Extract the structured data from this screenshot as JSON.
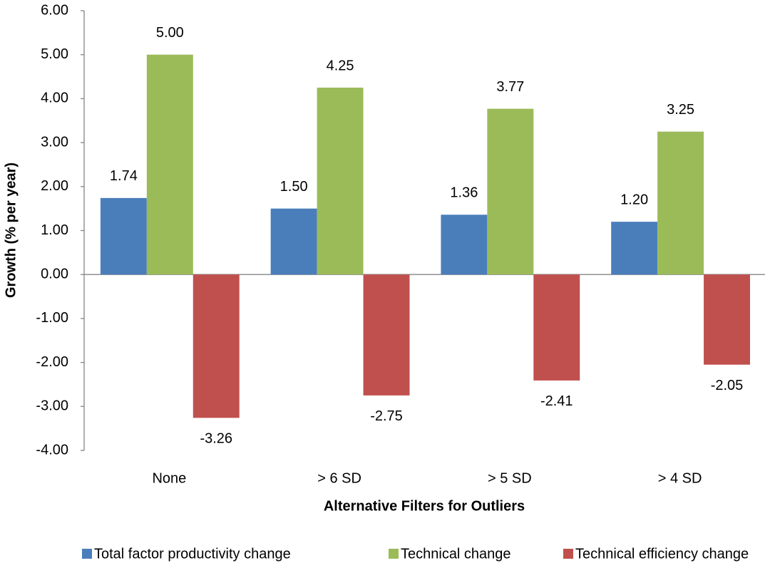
{
  "chart_data": {
    "type": "bar",
    "x_label": "Alternative Filters for Outliers",
    "y_label": "Growth (% per year)",
    "categories": [
      "None",
      "> 6 SD",
      "> 5 SD",
      "> 4 SD"
    ],
    "series": [
      {
        "name": "Total factor productivity change",
        "color": "#4a7ebb",
        "values": [
          1.74,
          1.5,
          1.36,
          1.2
        ],
        "value_labels": [
          "1.74",
          "1.50",
          "1.36",
          "1.20"
        ]
      },
      {
        "name": "Technical change",
        "color": "#9bbb59",
        "values": [
          5,
          4.25,
          3.77,
          3.25
        ],
        "value_labels": [
          "5.00",
          "4.25",
          "3.77",
          "3.25"
        ]
      },
      {
        "name": "Technical efficiency change",
        "color": "#c0504d",
        "values": [
          -3.26,
          -2.75,
          -2.41,
          -2.05
        ],
        "value_labels": [
          "-3.26",
          "-2.75",
          "-2.41",
          "-2.05"
        ]
      }
    ],
    "ylim": [
      -4,
      6
    ],
    "yticks": [
      {
        "value": -4,
        "label": "-4.00"
      },
      {
        "value": -3,
        "label": "-3.00"
      },
      {
        "value": -2,
        "label": "-2.00"
      },
      {
        "value": -1,
        "label": "-1.00"
      },
      {
        "value": 0,
        "label": "0.00"
      },
      {
        "value": 1,
        "label": "1.00"
      },
      {
        "value": 2,
        "label": "2.00"
      },
      {
        "value": 3,
        "label": "3.00"
      },
      {
        "value": 4,
        "label": "4.00"
      },
      {
        "value": 5,
        "label": "5.00"
      },
      {
        "value": 6,
        "label": "6.00"
      }
    ],
    "grid": false,
    "legend": "bottom"
  }
}
